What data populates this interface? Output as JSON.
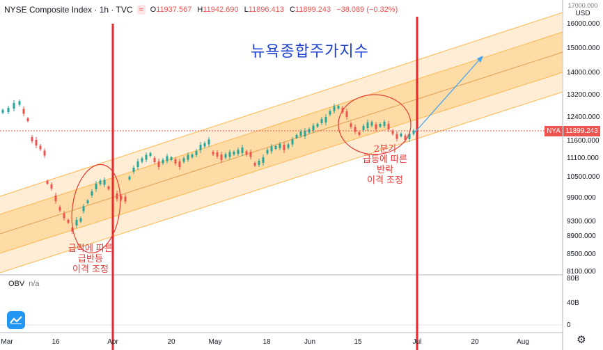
{
  "legend": {
    "symbol": "NYSE Composite Index · 1h · TVC",
    "button_label": "≈",
    "ohlc": [
      {
        "k": "O",
        "v": "11937.567"
      },
      {
        "k": "H",
        "v": "11942.690"
      },
      {
        "k": "L",
        "v": "11896.413"
      },
      {
        "k": "C",
        "v": "11899.243"
      }
    ],
    "change": "−38.089 (−0.32%)"
  },
  "currency": {
    "top": "17000.000",
    "unit": "USD"
  },
  "price_tag": {
    "symbol": "NYA",
    "value": "11899.243"
  },
  "obv": {
    "name": "OBV",
    "value": "n/a"
  },
  "price_axis": [
    "16000.000",
    "15000.000",
    "14000.000",
    "13200.000",
    "12400.000",
    "11600.000",
    "11100.000",
    "10500.000",
    "9900.000",
    "9300.000",
    "8900.000",
    "8500.000",
    "8100.000"
  ],
  "obv_axis": [
    "80B",
    "40B",
    "0"
  ],
  "time_axis": [
    "Mar",
    "16",
    "Apr",
    "20",
    "May",
    "18",
    "Jun",
    "15",
    "Jul",
    "20",
    "Aug"
  ],
  "annotations": {
    "title": "뉴욕종합주가지수",
    "left_note": "급락에 따른\n급반등\n이격 조정",
    "right_note": "2분기\n급등에 따른\n반락\n이격 조정"
  },
  "colors": {
    "up": "#26a69a",
    "down": "#ef5350",
    "channel": "#ffb74d",
    "vertical_lines": "#e8262b",
    "projection": "#42a5f5",
    "annotation": "#e53935",
    "title": "#1a3fd1"
  },
  "icons": {
    "logo": "tradingview-logo-icon",
    "settings": "gear-icon"
  }
}
